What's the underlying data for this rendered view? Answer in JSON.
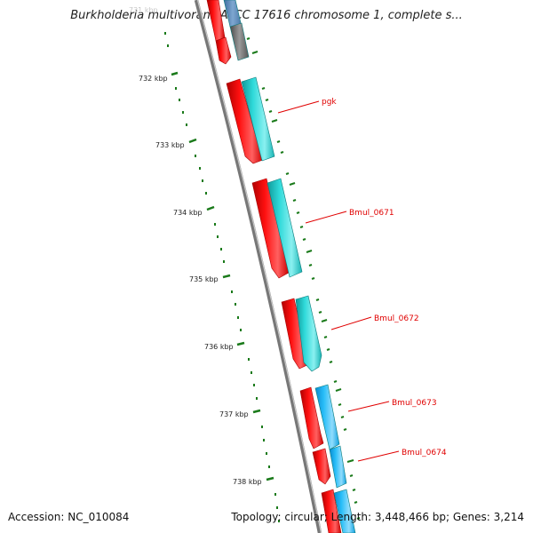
{
  "title": "Burkholderia multivorans ATCC 17616 chromosome 1, complete s...",
  "footer": {
    "accession": "Accession: NC_010084",
    "summary": "Topology: circular; Length: 3,448,466 bp; Genes: 3,214"
  },
  "faded_label": "731 kbp",
  "ticks": [
    "732 kbp",
    "733 kbp",
    "734 kbp",
    "735 kbp",
    "736 kbp",
    "737 kbp",
    "738 kbp"
  ],
  "gene_labels": [
    "pgk",
    "Bmul_0671",
    "Bmul_0672",
    "Bmul_0673",
    "Bmul_0674"
  ],
  "colors": {
    "backbone": "#7a7a7a",
    "tick_green": "#1a7a1a",
    "gene_red": "#ee0000",
    "cds_cyan": "#20c8c8",
    "cds_blue": "#20b0f0",
    "label_red": "#e00000"
  }
}
